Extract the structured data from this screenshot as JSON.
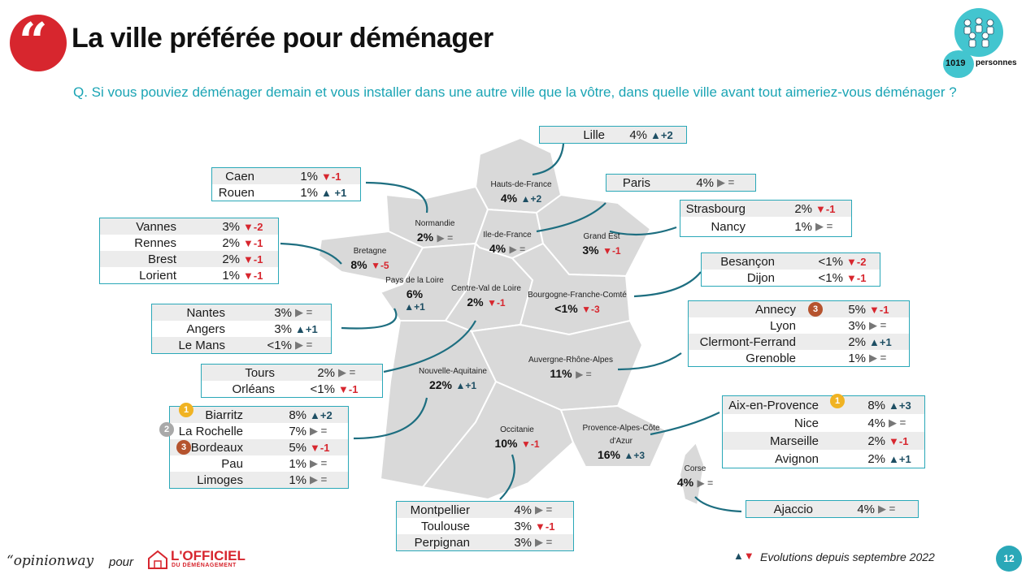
{
  "header": {
    "quote_mark": "“",
    "title": "La ville préférée pour déménager",
    "question": "Q. Si vous pouviez déménager demain et vous installer dans une autre ville que la vôtre, dans quelle ville avant tout aimeriez-vous déménager ?",
    "respondents_count": "1019",
    "respondents_unit": "personnes"
  },
  "regions": [
    {
      "name": "Hauts-de-France",
      "value": "4%",
      "evolution": "▲+2",
      "trend": "up"
    },
    {
      "name": "Normandie",
      "value": "2%",
      "evolution": "▶ =",
      "trend": "eq"
    },
    {
      "name": "Ile-de-France",
      "value": "4%",
      "evolution": "▶ =",
      "trend": "eq"
    },
    {
      "name": "Grand Est",
      "value": "3%",
      "evolution": "▼-1",
      "trend": "down"
    },
    {
      "name": "Bretagne",
      "value": "8%",
      "evolution": "▼-5",
      "trend": "down"
    },
    {
      "name": "Pays de la Loire",
      "value": "6%",
      "evolution": "▲+1",
      "trend": "up"
    },
    {
      "name": "Centre-Val de Loire",
      "value": "2%",
      "evolution": "▼-1",
      "trend": "down"
    },
    {
      "name": "Bourgogne-Franche-Comté",
      "value": "<1%",
      "evolution": "▼-3",
      "trend": "down"
    },
    {
      "name": "Nouvelle-Aquitaine",
      "value": "22%",
      "evolution": "▲+1",
      "trend": "up"
    },
    {
      "name": "Auvergne-Rhône-Alpes",
      "value": "11%",
      "evolution": "▶ =",
      "trend": "eq"
    },
    {
      "name": "Occitanie",
      "value": "10%",
      "evolution": "▼-1",
      "trend": "down"
    },
    {
      "name": "Provence-Alpes-Côte d'Azur",
      "value": "16%",
      "evolution": "▲+3",
      "trend": "up"
    },
    {
      "name": "Corse",
      "value": "4%",
      "evolution": "▶ =",
      "trend": "eq"
    }
  ],
  "city_boxes": [
    {
      "id": "lille",
      "rows": [
        {
          "city": "Lille",
          "pct": "4%",
          "ev": "▲+2",
          "trend": "up"
        }
      ]
    },
    {
      "id": "paris",
      "rows": [
        {
          "city": "Paris",
          "pct": "4%",
          "ev": "▶ =",
          "trend": "eq"
        }
      ]
    },
    {
      "id": "normandie",
      "rows": [
        {
          "city": "Caen",
          "pct": "1%",
          "ev": "▼-1",
          "trend": "down"
        },
        {
          "city": "Rouen",
          "pct": "1%",
          "ev": "▲ +1",
          "trend": "up"
        }
      ]
    },
    {
      "id": "grand-est",
      "rows": [
        {
          "city": "Strasbourg",
          "pct": "2%",
          "ev": "▼-1",
          "trend": "down"
        },
        {
          "city": "Nancy",
          "pct": "1%",
          "ev": "▶ =",
          "trend": "eq"
        }
      ]
    },
    {
      "id": "bretagne",
      "rows": [
        {
          "city": "Vannes",
          "pct": "3%",
          "ev": "▼-2",
          "trend": "down"
        },
        {
          "city": "Rennes",
          "pct": "2%",
          "ev": "▼-1",
          "trend": "down"
        },
        {
          "city": "Brest",
          "pct": "2%",
          "ev": "▼-1",
          "trend": "down"
        },
        {
          "city": "Lorient",
          "pct": "1%",
          "ev": "▼-1",
          "trend": "down"
        }
      ]
    },
    {
      "id": "bfc",
      "rows": [
        {
          "city": "Besançon",
          "pct": "<1%",
          "ev": "▼-2",
          "trend": "down"
        },
        {
          "city": "Dijon",
          "pct": "<1%",
          "ev": "▼-1",
          "trend": "down"
        }
      ]
    },
    {
      "id": "pdl",
      "rows": [
        {
          "city": "Nantes",
          "pct": "3%",
          "ev": "▶ =",
          "trend": "eq"
        },
        {
          "city": "Angers",
          "pct": "3%",
          "ev": "▲+1",
          "trend": "up"
        },
        {
          "city": "Le Mans",
          "pct": "<1%",
          "ev": "▶ =",
          "trend": "eq"
        }
      ]
    },
    {
      "id": "ara",
      "rows": [
        {
          "city": "Annecy",
          "pct": "5%",
          "ev": "▼-1",
          "trend": "down",
          "medal": "3"
        },
        {
          "city": "Lyon",
          "pct": "3%",
          "ev": "▶ =",
          "trend": "eq"
        },
        {
          "city": "Clermont-Ferrand",
          "pct": "2%",
          "ev": "▲+1",
          "trend": "up"
        },
        {
          "city": "Grenoble",
          "pct": "1%",
          "ev": "▶ =",
          "trend": "eq"
        }
      ]
    },
    {
      "id": "cvl",
      "rows": [
        {
          "city": "Tours",
          "pct": "2%",
          "ev": "▶ =",
          "trend": "eq"
        },
        {
          "city": "Orléans",
          "pct": "<1%",
          "ev": "▼-1",
          "trend": "down"
        }
      ]
    },
    {
      "id": "na",
      "rows": [
        {
          "city": "Biarritz",
          "pct": "8%",
          "ev": "▲+2",
          "trend": "up",
          "medal": "1"
        },
        {
          "city": "La Rochelle",
          "pct": "7%",
          "ev": "▶ =",
          "trend": "eq",
          "medal": "2"
        },
        {
          "city": "Bordeaux",
          "pct": "5%",
          "ev": "▼-1",
          "trend": "down",
          "medal": "3"
        },
        {
          "city": "Pau",
          "pct": "1%",
          "ev": "▶ =",
          "trend": "eq"
        },
        {
          "city": "Limoges",
          "pct": "1%",
          "ev": "▶ =",
          "trend": "eq"
        }
      ]
    },
    {
      "id": "paca",
      "rows": [
        {
          "city": "Aix-en-Provence",
          "pct": "8%",
          "ev": "▲+3",
          "trend": "up",
          "medal": "1"
        },
        {
          "city": "Nice",
          "pct": "4%",
          "ev": "▶ =",
          "trend": "eq"
        },
        {
          "city": "Marseille",
          "pct": "2%",
          "ev": "▼-1",
          "trend": "down"
        },
        {
          "city": "Avignon",
          "pct": "2%",
          "ev": "▲+1",
          "trend": "up"
        }
      ]
    },
    {
      "id": "occitanie",
      "rows": [
        {
          "city": "Montpellier",
          "pct": "4%",
          "ev": "▶ =",
          "trend": "eq"
        },
        {
          "city": "Toulouse",
          "pct": "3%",
          "ev": "▼-1",
          "trend": "down"
        },
        {
          "city": "Perpignan",
          "pct": "3%",
          "ev": "▶ =",
          "trend": "eq"
        }
      ]
    },
    {
      "id": "corse",
      "rows": [
        {
          "city": "Ajaccio",
          "pct": "4%",
          "ev": "▶ =",
          "trend": "eq"
        }
      ]
    }
  ],
  "footer": {
    "brand_opinionway": "“opinionway",
    "pour": "pour",
    "brand_officiel": "L'OFFICIEL",
    "brand_officiel_sub": "DU DÉMÉNAGEMENT",
    "legend_arrows": "▲▼",
    "legend_text": "Evolutions depuis septembre 2022",
    "page_number": "12"
  },
  "colors": {
    "accent_teal": "#2aa8b8",
    "question_teal": "#1aa4b4",
    "up_arrow": "#1d4e63",
    "down_arrow": "#d7262e",
    "map_fill": "#d9d9d9",
    "brand_red": "#d7262e"
  }
}
